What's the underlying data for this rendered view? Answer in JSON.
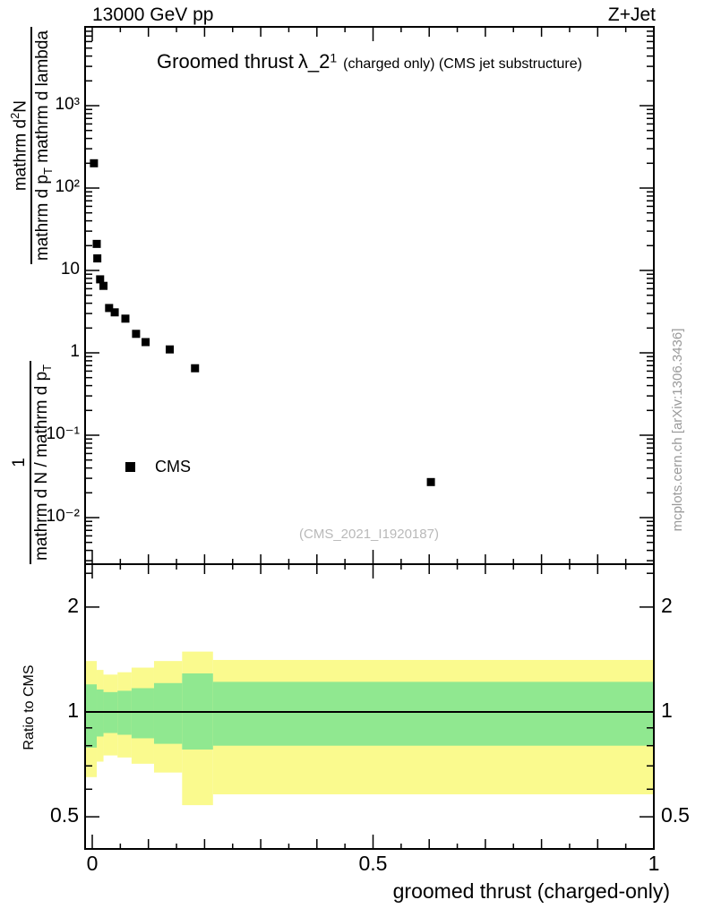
{
  "header": {
    "left": "13000 GeV pp",
    "right": "Z+Jet"
  },
  "title": {
    "text": "Groomed thrust",
    "symbol": "λ_2",
    "sup": "1",
    "suffix": "(charged only) (CMS jet substructure)"
  },
  "ylabel": {
    "frac1": {
      "num": "1",
      "den": "mathrm d N / mathrm d p",
      "den_sub": "T"
    },
    "frac2": {
      "num": "mathrm d",
      "num_sup": "2",
      "num_tail": "N",
      "den": "mathrm d p",
      "den_sub": "T",
      "den_tail": " mathrm d lambda"
    }
  },
  "axes": {
    "x": {
      "title": "groomed thrust (charged-only)",
      "major": [
        {
          "v": 0,
          "label": "0"
        },
        {
          "v": 0.5,
          "label": "0.5"
        },
        {
          "v": 1,
          "label": "1"
        }
      ]
    },
    "y_top": {
      "decades": [
        {
          "v": 1000,
          "label": "10³"
        },
        {
          "v": 100,
          "label": "10²"
        },
        {
          "v": 10,
          "label": "10"
        },
        {
          "v": 1,
          "label": "1"
        },
        {
          "v": 0.1,
          "label": "10⁻¹"
        },
        {
          "v": 0.01,
          "label": "10⁻²"
        }
      ]
    },
    "y_ratio": {
      "title": "Ratio to CMS",
      "major": [
        {
          "v": 2,
          "label": "2"
        },
        {
          "v": 1,
          "label": "1"
        },
        {
          "v": 0.5,
          "label": "0.5"
        }
      ],
      "minor": [
        0.6,
        0.7,
        0.8,
        0.9,
        2.5
      ]
    }
  },
  "legend": {
    "label": "CMS"
  },
  "watermark": "(CMS_2021_I1920187)",
  "side_note": "mcplots.cern.ch [arXiv:1306.3436]",
  "colors": {
    "band_outer": "#fafa8e",
    "band_inner": "#90e890",
    "marker": "#000000",
    "frame": "#000000",
    "watermark": "#b9b9b9",
    "side_note": "#9a9a9a"
  },
  "chart_data": [
    {
      "type": "scatter",
      "title": "Groomed thrust λ_2^1 (charged only) (CMS jet substructure)",
      "xlabel": "groomed thrust (charged-only)",
      "ylabel": "1/(mathrm d N / mathrm d p_T) · mathrm d²N/(mathrm d p_T mathrm d lambda)",
      "x_range": [
        -0.013,
        1.0
      ],
      "y_range_log": [
        0.0027,
        9050
      ],
      "grid": false,
      "legend_position": "inside-left",
      "series": [
        {
          "name": "CMS",
          "marker": "filled-square",
          "color": "#000000",
          "points": [
            [
              0.003,
              200
            ],
            [
              0.008,
              21
            ],
            [
              0.009,
              14
            ],
            [
              0.014,
              7.8
            ],
            [
              0.02,
              6.5
            ],
            [
              0.03,
              3.5
            ],
            [
              0.04,
              3.1
            ],
            [
              0.059,
              2.6
            ],
            [
              0.078,
              1.7
            ],
            [
              0.095,
              1.35
            ],
            [
              0.138,
              1.1
            ],
            [
              0.183,
              0.65
            ],
            [
              0.603,
              0.027
            ]
          ]
        }
      ]
    },
    {
      "type": "area",
      "title": "Ratio to CMS",
      "x_range": [
        -0.013,
        1.0
      ],
      "y_range_log": [
        0.4,
        2.66
      ],
      "reference_line": 1.0,
      "band_colors": {
        "outer": "#fafa8e",
        "inner": "#90e890"
      },
      "bands": [
        {
          "x": [
            -0.013,
            0.008
          ],
          "outer": [
            0.65,
            1.4
          ],
          "inner": [
            0.79,
            1.2
          ]
        },
        {
          "x": [
            0.008,
            0.02
          ],
          "outer": [
            0.72,
            1.32
          ],
          "inner": [
            0.85,
            1.16
          ]
        },
        {
          "x": [
            0.02,
            0.045
          ],
          "outer": [
            0.75,
            1.28
          ],
          "inner": [
            0.87,
            1.14
          ]
        },
        {
          "x": [
            0.045,
            0.07
          ],
          "outer": [
            0.74,
            1.3
          ],
          "inner": [
            0.86,
            1.15
          ]
        },
        {
          "x": [
            0.07,
            0.11
          ],
          "outer": [
            0.71,
            1.34
          ],
          "inner": [
            0.84,
            1.17
          ]
        },
        {
          "x": [
            0.11,
            0.16
          ],
          "outer": [
            0.67,
            1.4
          ],
          "inner": [
            0.81,
            1.21
          ]
        },
        {
          "x": [
            0.16,
            0.215
          ],
          "outer": [
            0.54,
            1.49
          ],
          "inner": [
            0.78,
            1.29
          ]
        },
        {
          "x": [
            0.215,
            1.0
          ],
          "outer": [
            0.58,
            1.41
          ],
          "inner": [
            0.8,
            1.22
          ]
        }
      ]
    }
  ]
}
